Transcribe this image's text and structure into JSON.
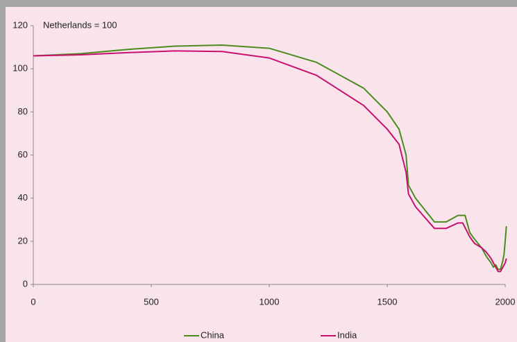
{
  "chart_data": {
    "type": "line",
    "annotation": "Netherlands = 100",
    "xlim": [
      0,
      2000
    ],
    "xticks": [
      0,
      500,
      1000,
      1500,
      2000
    ],
    "ylim": [
      0,
      120
    ],
    "yticks": [
      0,
      20,
      40,
      60,
      80,
      100,
      120
    ],
    "legend": "bottom",
    "series": [
      {
        "name": "China",
        "color": "#4a8c1c",
        "x": [
          0,
          200,
          400,
          600,
          800,
          1000,
          1200,
          1400,
          1500,
          1550,
          1580,
          1590,
          1620,
          1700,
          1750,
          1800,
          1830,
          1850,
          1870,
          1900,
          1920,
          1940,
          1950,
          1960,
          1970,
          1980,
          1990,
          1995,
          2000,
          2005
        ],
        "values": [
          106,
          107,
          109,
          110.5,
          111,
          109.5,
          103,
          91,
          80,
          72,
          60,
          46,
          40,
          29,
          29,
          32,
          32,
          24,
          21,
          17,
          13,
          10,
          8,
          9,
          7,
          7,
          11,
          14,
          20,
          27
        ]
      },
      {
        "name": "India",
        "color": "#c8106e",
        "x": [
          0,
          200,
          400,
          600,
          800,
          1000,
          1200,
          1400,
          1500,
          1550,
          1580,
          1590,
          1620,
          1700,
          1750,
          1800,
          1820,
          1850,
          1870,
          1900,
          1920,
          1940,
          1950,
          1960,
          1970,
          1980,
          1990,
          2000,
          2005
        ],
        "values": [
          106,
          106.5,
          107.5,
          108.3,
          108,
          105,
          97,
          83,
          72,
          65,
          52,
          42,
          36,
          26,
          26,
          28.5,
          28.5,
          22,
          19,
          17,
          15,
          12,
          10,
          8,
          6,
          6,
          8,
          10,
          12
        ]
      }
    ]
  }
}
